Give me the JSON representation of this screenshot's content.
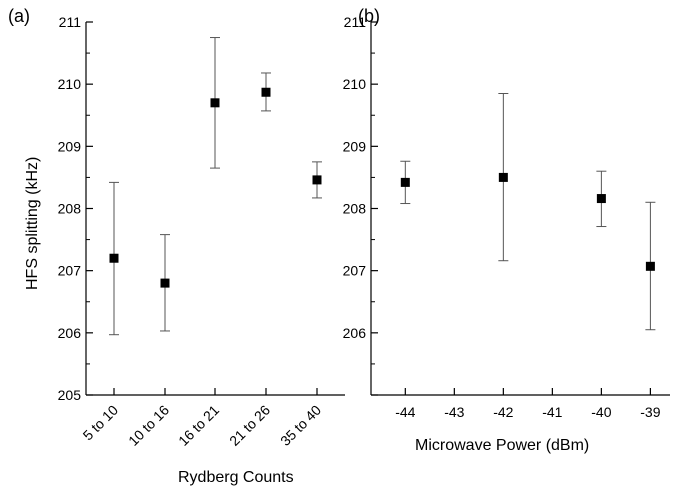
{
  "chart_data": [
    {
      "panel_label": "(a)",
      "type": "scatter",
      "xlabel": "Rydberg Counts",
      "ylabel": "HFS splitting (kHz)",
      "categories": [
        "5 to 10",
        "10 to 16",
        "16 to 21",
        "21 to 26",
        "35 to 40"
      ],
      "values": [
        207.2,
        206.8,
        209.7,
        209.87,
        208.46
      ],
      "error_low": [
        205.97,
        206.03,
        208.65,
        209.57,
        208.17
      ],
      "error_high": [
        208.42,
        207.58,
        210.75,
        210.18,
        208.75
      ],
      "ylim": [
        205,
        211
      ],
      "yticks": [
        "205",
        "206",
        "207",
        "208",
        "209",
        "210",
        "211"
      ],
      "marker": "filled-square",
      "grid": false
    },
    {
      "panel_label": "(b)",
      "type": "scatter",
      "xlabel": "Microwave Power (dBm)",
      "ylabel": "",
      "x": [
        -44,
        -42,
        -40,
        -39
      ],
      "values": [
        208.42,
        208.5,
        208.16,
        207.07
      ],
      "error_low": [
        208.08,
        207.16,
        207.71,
        206.05
      ],
      "error_high": [
        208.76,
        209.85,
        208.6,
        208.1
      ],
      "xticks": [
        "-44",
        "-43",
        "-42",
        "-41",
        "-40",
        "-39"
      ],
      "xlim": [
        -44.7,
        -38.6
      ],
      "ylim": [
        205,
        211
      ],
      "yticks": [
        "206",
        "207",
        "208",
        "209",
        "210",
        "211"
      ],
      "marker": "filled-square",
      "grid": false
    }
  ]
}
